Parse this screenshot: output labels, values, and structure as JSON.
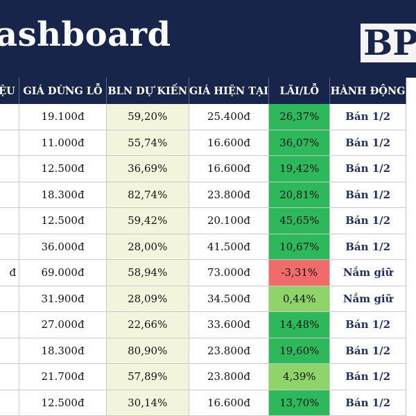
{
  "header": {
    "title": "ashboard",
    "logo_text": "BP"
  },
  "table": {
    "columns": [
      "IỆU",
      "GIÁ DỪNG LỖ",
      "BLN DỰ KIẾN",
      "GIÁ HIỆN TẠI",
      "LÃI/LỖ",
      "HÀNH ĐỘNG"
    ],
    "rows": [
      {
        "c0": "",
        "stop": "19.100đ",
        "bln": "59,20%",
        "price": "25.400đ",
        "pl": "26,37%",
        "pl_color": "#2eb85c",
        "action": "Bán 1/2"
      },
      {
        "c0": "",
        "stop": "11.000đ",
        "bln": "55,74%",
        "price": "16.600đ",
        "pl": "36,07%",
        "pl_color": "#2eb85c",
        "action": "Bán 1/2"
      },
      {
        "c0": "",
        "stop": "12.500đ",
        "bln": "36,69%",
        "price": "16.600đ",
        "pl": "19,42%",
        "pl_color": "#2eb85c",
        "action": "Bán 1/2"
      },
      {
        "c0": "",
        "stop": "18.300đ",
        "bln": "82,74%",
        "price": "23.800đ",
        "pl": "20,81%",
        "pl_color": "#2eb85c",
        "action": "Bán 1/2"
      },
      {
        "c0": "",
        "stop": "12.500đ",
        "bln": "59,42%",
        "price": "20.100đ",
        "pl": "45,65%",
        "pl_color": "#2eb85c",
        "action": "Bán 1/2"
      },
      {
        "c0": "",
        "stop": "36.000đ",
        "bln": "28,00%",
        "price": "41.500đ",
        "pl": "10,67%",
        "pl_color": "#2eb85c",
        "action": "Bán 1/2"
      },
      {
        "c0": "đ",
        "stop": "69.000đ",
        "bln": "58,94%",
        "price": "73.000đ",
        "pl": "-3,31%",
        "pl_color": "#f26b6b",
        "action": "Nắm giữ"
      },
      {
        "c0": "",
        "stop": "31.900đ",
        "bln": "28,09%",
        "price": "34.500đ",
        "pl": "0,44%",
        "pl_color": "#8fd468",
        "action": "Nắm giữ"
      },
      {
        "c0": "",
        "stop": "27.000đ",
        "bln": "22,66%",
        "price": "33.600đ",
        "pl": "14,48%",
        "pl_color": "#2eb85c",
        "action": "Bán 1/2"
      },
      {
        "c0": "",
        "stop": "18.300đ",
        "bln": "80,90%",
        "price": "23.800đ",
        "pl": "19,60%",
        "pl_color": "#2eb85c",
        "action": "Bán 1/2"
      },
      {
        "c0": "",
        "stop": "21.700đ",
        "bln": "57,89%",
        "price": "23.800đ",
        "pl": "4,39%",
        "pl_color": "#8fd468",
        "action": "Bán 1/2"
      },
      {
        "c0": "",
        "stop": "12.500đ",
        "bln": "30,14%",
        "price": "16.600đ",
        "pl": "13,70%",
        "pl_color": "#2eb85c",
        "action": "Bán 1/2"
      }
    ]
  }
}
